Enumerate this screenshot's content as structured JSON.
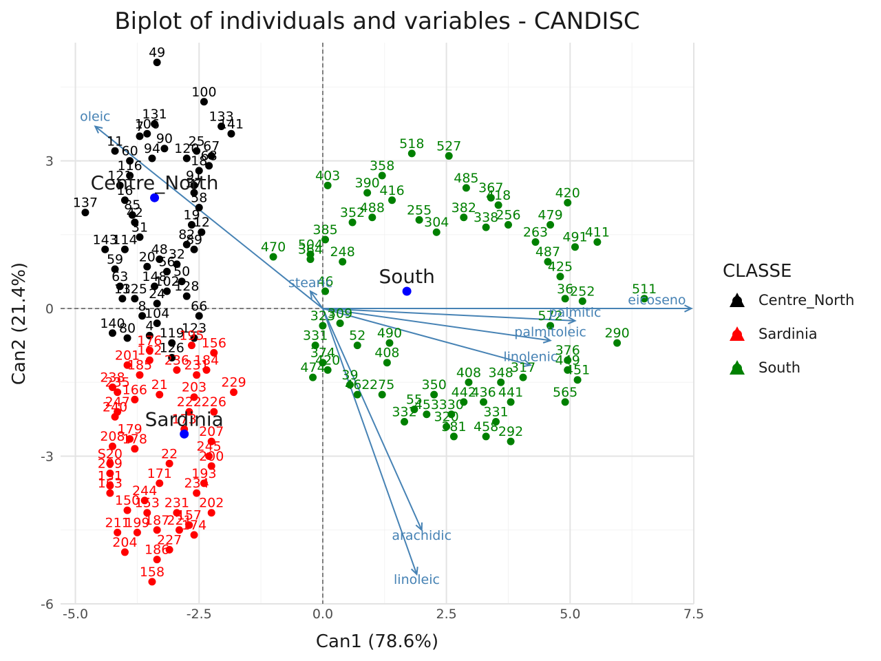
{
  "chart_data": {
    "type": "scatter",
    "title": "Biplot of individuals and variables - CANDISC",
    "xlabel": "Can1 (78.6%)",
    "ylabel": "Can2 (21.4%)",
    "xlim": [
      -5.3,
      7.5
    ],
    "ylim": [
      -6.0,
      5.4
    ],
    "x_ticks": [
      -5.0,
      -2.5,
      0.0,
      2.5,
      5.0,
      7.5
    ],
    "x_tick_labels": [
      "-5.0",
      "-2.5",
      "0.0",
      "2.5",
      "5.0",
      "7.5"
    ],
    "y_ticks": [
      -6,
      -3,
      0,
      3
    ],
    "y_tick_labels": [
      "-6",
      "-3",
      "0",
      "3"
    ],
    "grid": true,
    "reference_lines": {
      "x": 0,
      "y": 0,
      "style": "dashed"
    },
    "legend": {
      "title": "CLASSE",
      "position": "right",
      "entries": [
        {
          "name": "Centre_North",
          "color": "#000000"
        },
        {
          "name": "Sardinia",
          "color": "#ff0000"
        },
        {
          "name": "South",
          "color": "#008000"
        }
      ]
    },
    "centroid_color": "#0000ff",
    "variable_color": "#4682b4",
    "series": [
      {
        "name": "Centre_North",
        "color": "#000000",
        "centroid": {
          "x": -3.4,
          "y": 2.25,
          "label": "Centre_North"
        },
        "points": [
          {
            "x": -3.35,
            "y": 5.0,
            "label": "49"
          },
          {
            "x": -2.4,
            "y": 4.2,
            "label": "100"
          },
          {
            "x": -3.4,
            "y": 3.75,
            "label": "131"
          },
          {
            "x": -3.7,
            "y": 3.5,
            "label": "7"
          },
          {
            "x": -3.55,
            "y": 3.55,
            "label": "106"
          },
          {
            "x": -2.05,
            "y": 3.7,
            "label": "133"
          },
          {
            "x": -1.85,
            "y": 3.55,
            "label": "141"
          },
          {
            "x": -4.2,
            "y": 3.2,
            "label": "11"
          },
          {
            "x": -3.2,
            "y": 3.25,
            "label": "90"
          },
          {
            "x": -2.55,
            "y": 3.2,
            "label": "25"
          },
          {
            "x": -2.25,
            "y": 3.1,
            "label": "67"
          },
          {
            "x": -3.9,
            "y": 3.0,
            "label": "60"
          },
          {
            "x": -3.45,
            "y": 3.05,
            "label": "94"
          },
          {
            "x": -2.75,
            "y": 3.05,
            "label": "120"
          },
          {
            "x": -3.9,
            "y": 2.7,
            "label": "116"
          },
          {
            "x": -2.5,
            "y": 2.8,
            "label": "18"
          },
          {
            "x": -2.3,
            "y": 2.9,
            "label": "68"
          },
          {
            "x": -2.6,
            "y": 2.5,
            "label": "91"
          },
          {
            "x": -4.1,
            "y": 2.5,
            "label": "121"
          },
          {
            "x": -2.6,
            "y": 2.35,
            "label": "37"
          },
          {
            "x": -4.0,
            "y": 2.2,
            "label": "16"
          },
          {
            "x": -4.8,
            "y": 1.95,
            "label": "137"
          },
          {
            "x": -3.85,
            "y": 1.9,
            "label": "85"
          },
          {
            "x": -2.5,
            "y": 2.05,
            "label": "58"
          },
          {
            "x": -3.8,
            "y": 1.75,
            "label": "42"
          },
          {
            "x": -2.65,
            "y": 1.7,
            "label": "19"
          },
          {
            "x": -2.45,
            "y": 1.55,
            "label": "12"
          },
          {
            "x": -3.7,
            "y": 1.45,
            "label": "31"
          },
          {
            "x": -2.75,
            "y": 1.3,
            "label": "82"
          },
          {
            "x": -2.6,
            "y": 1.2,
            "label": "89"
          },
          {
            "x": -4.4,
            "y": 1.2,
            "label": "143"
          },
          {
            "x": -4.0,
            "y": 1.2,
            "label": "114"
          },
          {
            "x": -3.3,
            "y": 1.0,
            "label": "48"
          },
          {
            "x": -2.95,
            "y": 0.9,
            "label": "32"
          },
          {
            "x": -4.2,
            "y": 0.8,
            "label": "59"
          },
          {
            "x": -3.55,
            "y": 0.85,
            "label": "20"
          },
          {
            "x": -3.15,
            "y": 0.75,
            "label": "56"
          },
          {
            "x": -2.85,
            "y": 0.55,
            "label": "50"
          },
          {
            "x": -4.1,
            "y": 0.45,
            "label": "63"
          },
          {
            "x": -3.4,
            "y": 0.45,
            "label": "148"
          },
          {
            "x": -3.15,
            "y": 0.35,
            "label": "102"
          },
          {
            "x": -4.05,
            "y": 0.2,
            "label": "13"
          },
          {
            "x": -3.8,
            "y": 0.2,
            "label": "125"
          },
          {
            "x": -3.35,
            "y": 0.1,
            "label": "24"
          },
          {
            "x": -2.75,
            "y": 0.25,
            "label": "128"
          },
          {
            "x": -3.65,
            "y": -0.15,
            "label": "8"
          },
          {
            "x": -2.5,
            "y": -0.15,
            "label": "66"
          },
          {
            "x": -3.35,
            "y": -0.3,
            "label": "104"
          },
          {
            "x": -4.25,
            "y": -0.5,
            "label": "140"
          },
          {
            "x": -3.95,
            "y": -0.6,
            "label": "80"
          },
          {
            "x": -3.5,
            "y": -0.55,
            "label": "4"
          },
          {
            "x": -3.05,
            "y": -0.7,
            "label": "119"
          },
          {
            "x": -2.6,
            "y": -0.6,
            "label": "123"
          },
          {
            "x": -3.05,
            "y": -1.0,
            "label": "126"
          }
        ]
      },
      {
        "name": "Sardinia",
        "color": "#ff0000",
        "centroid": {
          "x": -2.8,
          "y": -2.55,
          "label": "Sardinia"
        },
        "points": [
          {
            "x": -2.65,
            "y": -0.75,
            "label": "195"
          },
          {
            "x": -3.5,
            "y": -0.85,
            "label": "176"
          },
          {
            "x": -2.2,
            "y": -0.9,
            "label": "156"
          },
          {
            "x": -3.5,
            "y": -1.05,
            "label": "162"
          },
          {
            "x": -3.95,
            "y": -1.15,
            "label": "201"
          },
          {
            "x": -2.95,
            "y": -1.25,
            "label": "236"
          },
          {
            "x": -2.35,
            "y": -1.25,
            "label": "184"
          },
          {
            "x": -3.7,
            "y": -1.35,
            "label": "185"
          },
          {
            "x": -2.55,
            "y": -1.35,
            "label": "231"
          },
          {
            "x": -4.25,
            "y": -1.6,
            "label": "238"
          },
          {
            "x": -1.8,
            "y": -1.7,
            "label": "229"
          },
          {
            "x": -4.15,
            "y": -1.7,
            "label": "235"
          },
          {
            "x": -3.8,
            "y": -1.85,
            "label": "166"
          },
          {
            "x": -2.6,
            "y": -1.8,
            "label": "203"
          },
          {
            "x": -3.3,
            "y": -1.75,
            "label": "21"
          },
          {
            "x": -4.15,
            "y": -2.1,
            "label": "247"
          },
          {
            "x": -2.7,
            "y": -2.1,
            "label": "222"
          },
          {
            "x": -2.2,
            "y": -2.1,
            "label": "226"
          },
          {
            "x": -4.2,
            "y": -2.2,
            "label": "240"
          },
          {
            "x": -2.8,
            "y": -2.45,
            "label": "173"
          },
          {
            "x": -3.9,
            "y": -2.65,
            "label": "179"
          },
          {
            "x": -2.25,
            "y": -2.7,
            "label": "207"
          },
          {
            "x": -4.25,
            "y": -2.8,
            "label": "208"
          },
          {
            "x": -3.8,
            "y": -2.85,
            "label": "178"
          },
          {
            "x": -2.3,
            "y": -3.0,
            "label": "245"
          },
          {
            "x": -4.3,
            "y": -3.15,
            "label": "S20"
          },
          {
            "x": -3.1,
            "y": -3.15,
            "label": "22"
          },
          {
            "x": -2.25,
            "y": -3.2,
            "label": "200"
          },
          {
            "x": -4.3,
            "y": -3.35,
            "label": "209"
          },
          {
            "x": -3.3,
            "y": -3.55,
            "label": "171"
          },
          {
            "x": -2.4,
            "y": -3.55,
            "label": "193"
          },
          {
            "x": -4.3,
            "y": -3.6,
            "label": "151"
          },
          {
            "x": -4.3,
            "y": -3.75,
            "label": "163"
          },
          {
            "x": -2.55,
            "y": -3.75,
            "label": "234"
          },
          {
            "x": -3.6,
            "y": -3.9,
            "label": "244"
          },
          {
            "x": -3.95,
            "y": -4.1,
            "label": "150"
          },
          {
            "x": -3.55,
            "y": -4.15,
            "label": "153"
          },
          {
            "x": -2.95,
            "y": -4.15,
            "label": "231"
          },
          {
            "x": -2.25,
            "y": -4.15,
            "label": "202"
          },
          {
            "x": -2.7,
            "y": -4.4,
            "label": "157"
          },
          {
            "x": -4.15,
            "y": -4.55,
            "label": "211"
          },
          {
            "x": -3.75,
            "y": -4.55,
            "label": "199"
          },
          {
            "x": -3.35,
            "y": -4.5,
            "label": "187"
          },
          {
            "x": -2.9,
            "y": -4.5,
            "label": "221"
          },
          {
            "x": -2.6,
            "y": -4.6,
            "label": "174"
          },
          {
            "x": -4.0,
            "y": -4.95,
            "label": "204"
          },
          {
            "x": -3.1,
            "y": -4.9,
            "label": "227"
          },
          {
            "x": -3.35,
            "y": -5.1,
            "label": "186"
          },
          {
            "x": -3.45,
            "y": -5.55,
            "label": "158"
          }
        ]
      },
      {
        "name": "South",
        "color": "#008000",
        "centroid": {
          "x": 1.7,
          "y": 0.35,
          "label": "South"
        },
        "points": [
          {
            "x": 1.8,
            "y": 3.15,
            "label": "518"
          },
          {
            "x": 2.55,
            "y": 3.1,
            "label": "527"
          },
          {
            "x": 1.2,
            "y": 2.7,
            "label": "358"
          },
          {
            "x": 0.1,
            "y": 2.5,
            "label": "403"
          },
          {
            "x": 0.9,
            "y": 2.35,
            "label": "390"
          },
          {
            "x": 2.9,
            "y": 2.45,
            "label": "485"
          },
          {
            "x": 1.4,
            "y": 2.2,
            "label": "416"
          },
          {
            "x": 3.4,
            "y": 2.25,
            "label": "367"
          },
          {
            "x": 3.55,
            "y": 2.1,
            "label": "418"
          },
          {
            "x": 4.95,
            "y": 2.15,
            "label": "420"
          },
          {
            "x": 0.6,
            "y": 1.75,
            "label": "352"
          },
          {
            "x": 1.0,
            "y": 1.85,
            "label": "488"
          },
          {
            "x": 1.95,
            "y": 1.8,
            "label": "255"
          },
          {
            "x": 2.85,
            "y": 1.85,
            "label": "382"
          },
          {
            "x": 3.3,
            "y": 1.65,
            "label": "338"
          },
          {
            "x": 3.75,
            "y": 1.7,
            "label": "256"
          },
          {
            "x": 4.6,
            "y": 1.7,
            "label": "479"
          },
          {
            "x": 0.05,
            "y": 1.4,
            "label": "385"
          },
          {
            "x": 2.3,
            "y": 1.55,
            "label": "304"
          },
          {
            "x": 4.3,
            "y": 1.35,
            "label": "263"
          },
          {
            "x": 5.1,
            "y": 1.25,
            "label": "491"
          },
          {
            "x": 5.55,
            "y": 1.35,
            "label": "411"
          },
          {
            "x": -1.0,
            "y": 1.05,
            "label": "470"
          },
          {
            "x": -0.25,
            "y": 1.1,
            "label": "504"
          },
          {
            "x": -0.25,
            "y": 1.0,
            "label": "364"
          },
          {
            "x": 0.4,
            "y": 0.95,
            "label": "248"
          },
          {
            "x": 4.55,
            "y": 0.95,
            "label": "487"
          },
          {
            "x": 4.8,
            "y": 0.65,
            "label": "425"
          },
          {
            "x": 0.05,
            "y": 0.35,
            "label": "46"
          },
          {
            "x": 4.9,
            "y": 0.2,
            "label": "36"
          },
          {
            "x": 5.25,
            "y": 0.15,
            "label": "252"
          },
          {
            "x": 6.5,
            "y": 0.2,
            "label": "511"
          },
          {
            "x": 0.0,
            "y": -0.35,
            "label": "323"
          },
          {
            "x": 0.35,
            "y": -0.3,
            "label": "309"
          },
          {
            "x": 4.6,
            "y": -0.35,
            "label": "572"
          },
          {
            "x": -0.15,
            "y": -0.75,
            "label": "331"
          },
          {
            "x": 0.7,
            "y": -0.75,
            "label": "52"
          },
          {
            "x": 1.35,
            "y": -0.7,
            "label": "490"
          },
          {
            "x": 5.95,
            "y": -0.7,
            "label": "290"
          },
          {
            "x": 0.0,
            "y": -1.1,
            "label": "374"
          },
          {
            "x": 1.3,
            "y": -1.1,
            "label": "408"
          },
          {
            "x": 4.95,
            "y": -1.05,
            "label": "376"
          },
          {
            "x": 0.1,
            "y": -1.25,
            "label": "420"
          },
          {
            "x": 4.95,
            "y": -1.25,
            "label": "449"
          },
          {
            "x": -0.2,
            "y": -1.4,
            "label": "474"
          },
          {
            "x": 4.05,
            "y": -1.4,
            "label": "317"
          },
          {
            "x": 3.6,
            "y": -1.5,
            "label": "348"
          },
          {
            "x": 5.15,
            "y": -1.45,
            "label": "451"
          },
          {
            "x": 2.95,
            "y": -1.5,
            "label": "408"
          },
          {
            "x": 0.55,
            "y": -1.55,
            "label": "39"
          },
          {
            "x": 0.7,
            "y": -1.75,
            "label": "462"
          },
          {
            "x": 1.2,
            "y": -1.75,
            "label": "275"
          },
          {
            "x": 2.25,
            "y": -1.75,
            "label": "350"
          },
          {
            "x": 2.85,
            "y": -1.9,
            "label": "442"
          },
          {
            "x": 3.25,
            "y": -1.9,
            "label": "436"
          },
          {
            "x": 3.8,
            "y": -1.9,
            "label": "441"
          },
          {
            "x": 1.85,
            "y": -2.05,
            "label": "55"
          },
          {
            "x": 2.1,
            "y": -2.15,
            "label": "453"
          },
          {
            "x": 2.6,
            "y": -2.15,
            "label": "330"
          },
          {
            "x": 1.65,
            "y": -2.3,
            "label": "332"
          },
          {
            "x": 4.9,
            "y": -1.9,
            "label": "565"
          },
          {
            "x": 2.5,
            "y": -2.4,
            "label": "320"
          },
          {
            "x": 3.5,
            "y": -2.3,
            "label": "331"
          },
          {
            "x": 2.65,
            "y": -2.6,
            "label": "381"
          },
          {
            "x": 3.3,
            "y": -2.6,
            "label": "458"
          },
          {
            "x": 3.8,
            "y": -2.7,
            "label": "292"
          }
        ]
      }
    ],
    "variables": [
      {
        "name": "oleic",
        "x": -4.6,
        "y": 3.7
      },
      {
        "name": "stearic",
        "x": -0.25,
        "y": 0.35
      },
      {
        "name": "eicoseno",
        "x": 7.45,
        "y": 0.0
      },
      {
        "name": "palmitic",
        "x": 5.1,
        "y": -0.25
      },
      {
        "name": "palmitoleic",
        "x": 4.6,
        "y": -0.65
      },
      {
        "name": "linolenic",
        "x": 4.2,
        "y": -1.15
      },
      {
        "name": "arachidic",
        "x": 2.0,
        "y": -4.5
      },
      {
        "name": "linoleic",
        "x": 1.9,
        "y": -5.4
      }
    ]
  }
}
